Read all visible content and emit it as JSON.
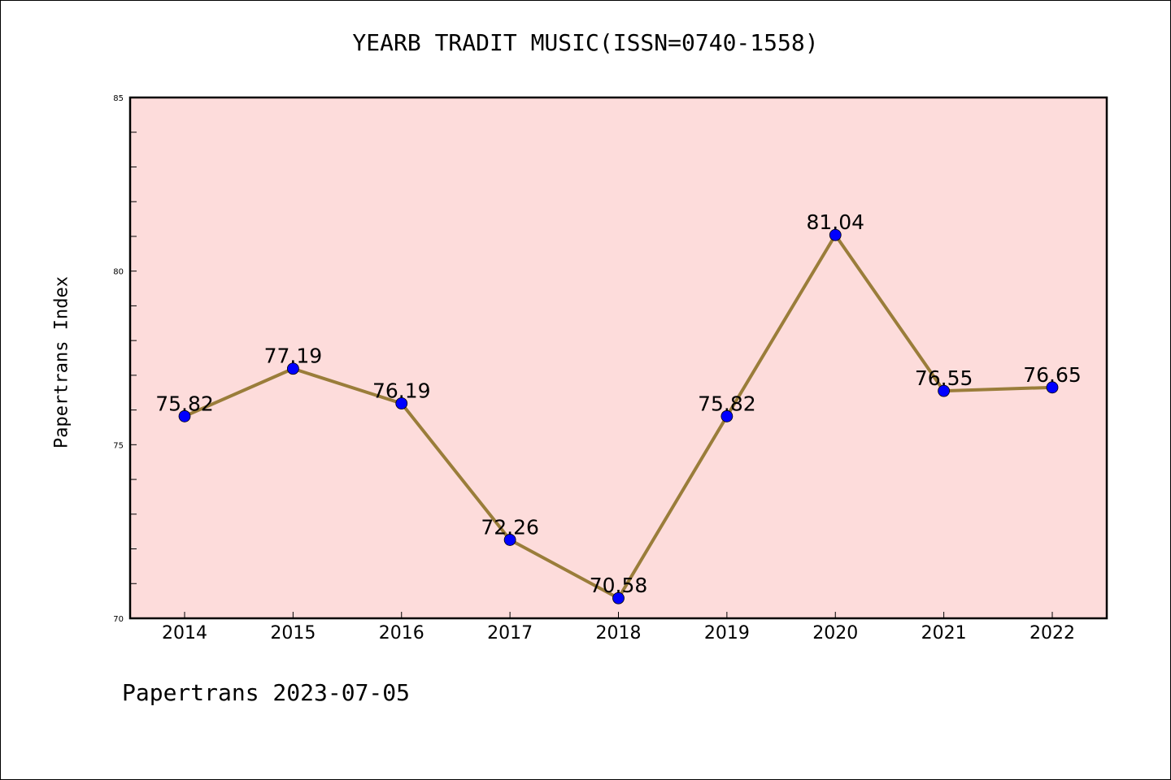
{
  "title": "YEARB TRADIT MUSIC(ISSN=0740-1558)",
  "footer": "Papertrans 2023-07-05",
  "colors": {
    "plot_background": "#fddcdb",
    "line": "#9a7d3a",
    "marker": "#0000ff"
  },
  "chart_data": {
    "type": "line",
    "title": "YEARB TRADIT MUSIC(ISSN=0740-1558)",
    "xlabel": "",
    "ylabel": "Papertrans Index",
    "categories": [
      "2014",
      "2015",
      "2016",
      "2017",
      "2018",
      "2019",
      "2020",
      "2021",
      "2022"
    ],
    "series": [
      {
        "values": [
          75.82,
          77.19,
          76.19,
          72.26,
          70.58,
          75.82,
          81.04,
          76.55,
          76.65
        ],
        "labels": [
          "75.82",
          "77.19",
          "76.19",
          "72.26",
          "70.58",
          "75.82",
          "81.04",
          "76.55",
          "76.65"
        ]
      }
    ],
    "ylim": [
      70,
      85
    ],
    "yticks": [
      "70",
      "75",
      "80",
      "85"
    ],
    "grid": false
  }
}
